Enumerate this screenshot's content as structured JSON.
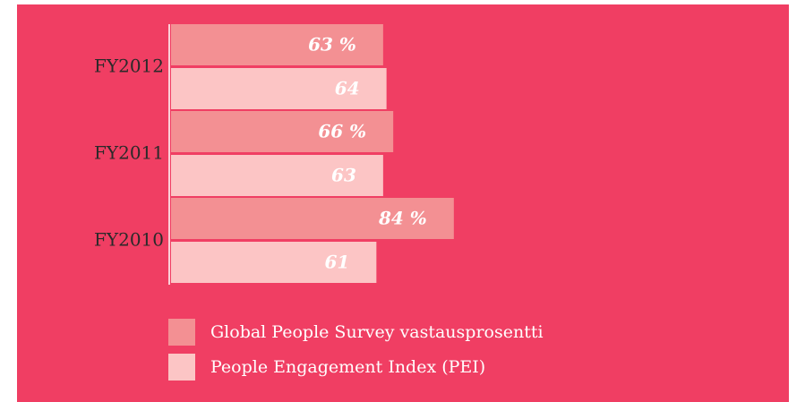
{
  "chart_data": {
    "type": "bar",
    "orientation": "horizontal",
    "categories": [
      "FY2012",
      "FY2011",
      "FY2010"
    ],
    "series": [
      {
        "name": "Global People Survey vastausprosentti",
        "color": "#f39093",
        "values": [
          63,
          66,
          84
        ],
        "value_labels": [
          "63 %",
          "66 %",
          "84 %"
        ]
      },
      {
        "name": "People Engagement Index (PEI)",
        "color": "#fcc5c5",
        "values": [
          64,
          63,
          61
        ]
      }
    ]
  }
}
